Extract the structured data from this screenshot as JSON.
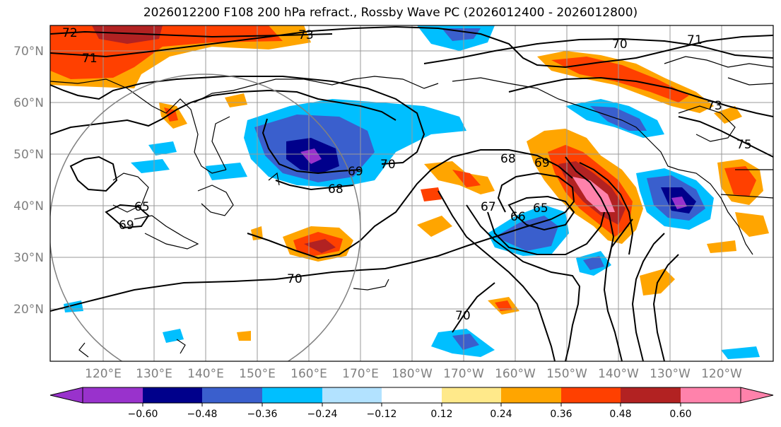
{
  "title": "2026012200 F108 200 hPa refract., Rossby Wave PC (2026012400 - 2026012800)",
  "map": {
    "lat_labels": [
      "70°N",
      "60°N",
      "50°N",
      "40°N",
      "30°N",
      "20°N"
    ],
    "lon_labels": [
      "120°E",
      "130°E",
      "140°E",
      "150°E",
      "160°E",
      "170°E",
      "180°W",
      "170°W",
      "160°W",
      "150°W",
      "140°W",
      "130°W",
      "120°W"
    ],
    "contour_labels": [
      "72",
      "73",
      "71",
      "70",
      "71",
      "73",
      "75",
      "70",
      "69",
      "68",
      "68",
      "69",
      "67",
      "66",
      "65",
      "69",
      "70",
      "70",
      "65"
    ]
  },
  "colorbar": {
    "colors": [
      "#9932cc",
      "#00008b",
      "#3a5fcd",
      "#00bfff",
      "#b2e2ff",
      "#ffffff",
      "#ffe98a",
      "#ffa500",
      "#ff4000",
      "#b22222",
      "#ff82ab"
    ],
    "tick_labels": [
      "−0.60",
      "−0.48",
      "−0.36",
      "−0.24",
      "−0.12",
      "0.12",
      "0.24",
      "0.36",
      "0.48",
      "0.60"
    ]
  }
}
